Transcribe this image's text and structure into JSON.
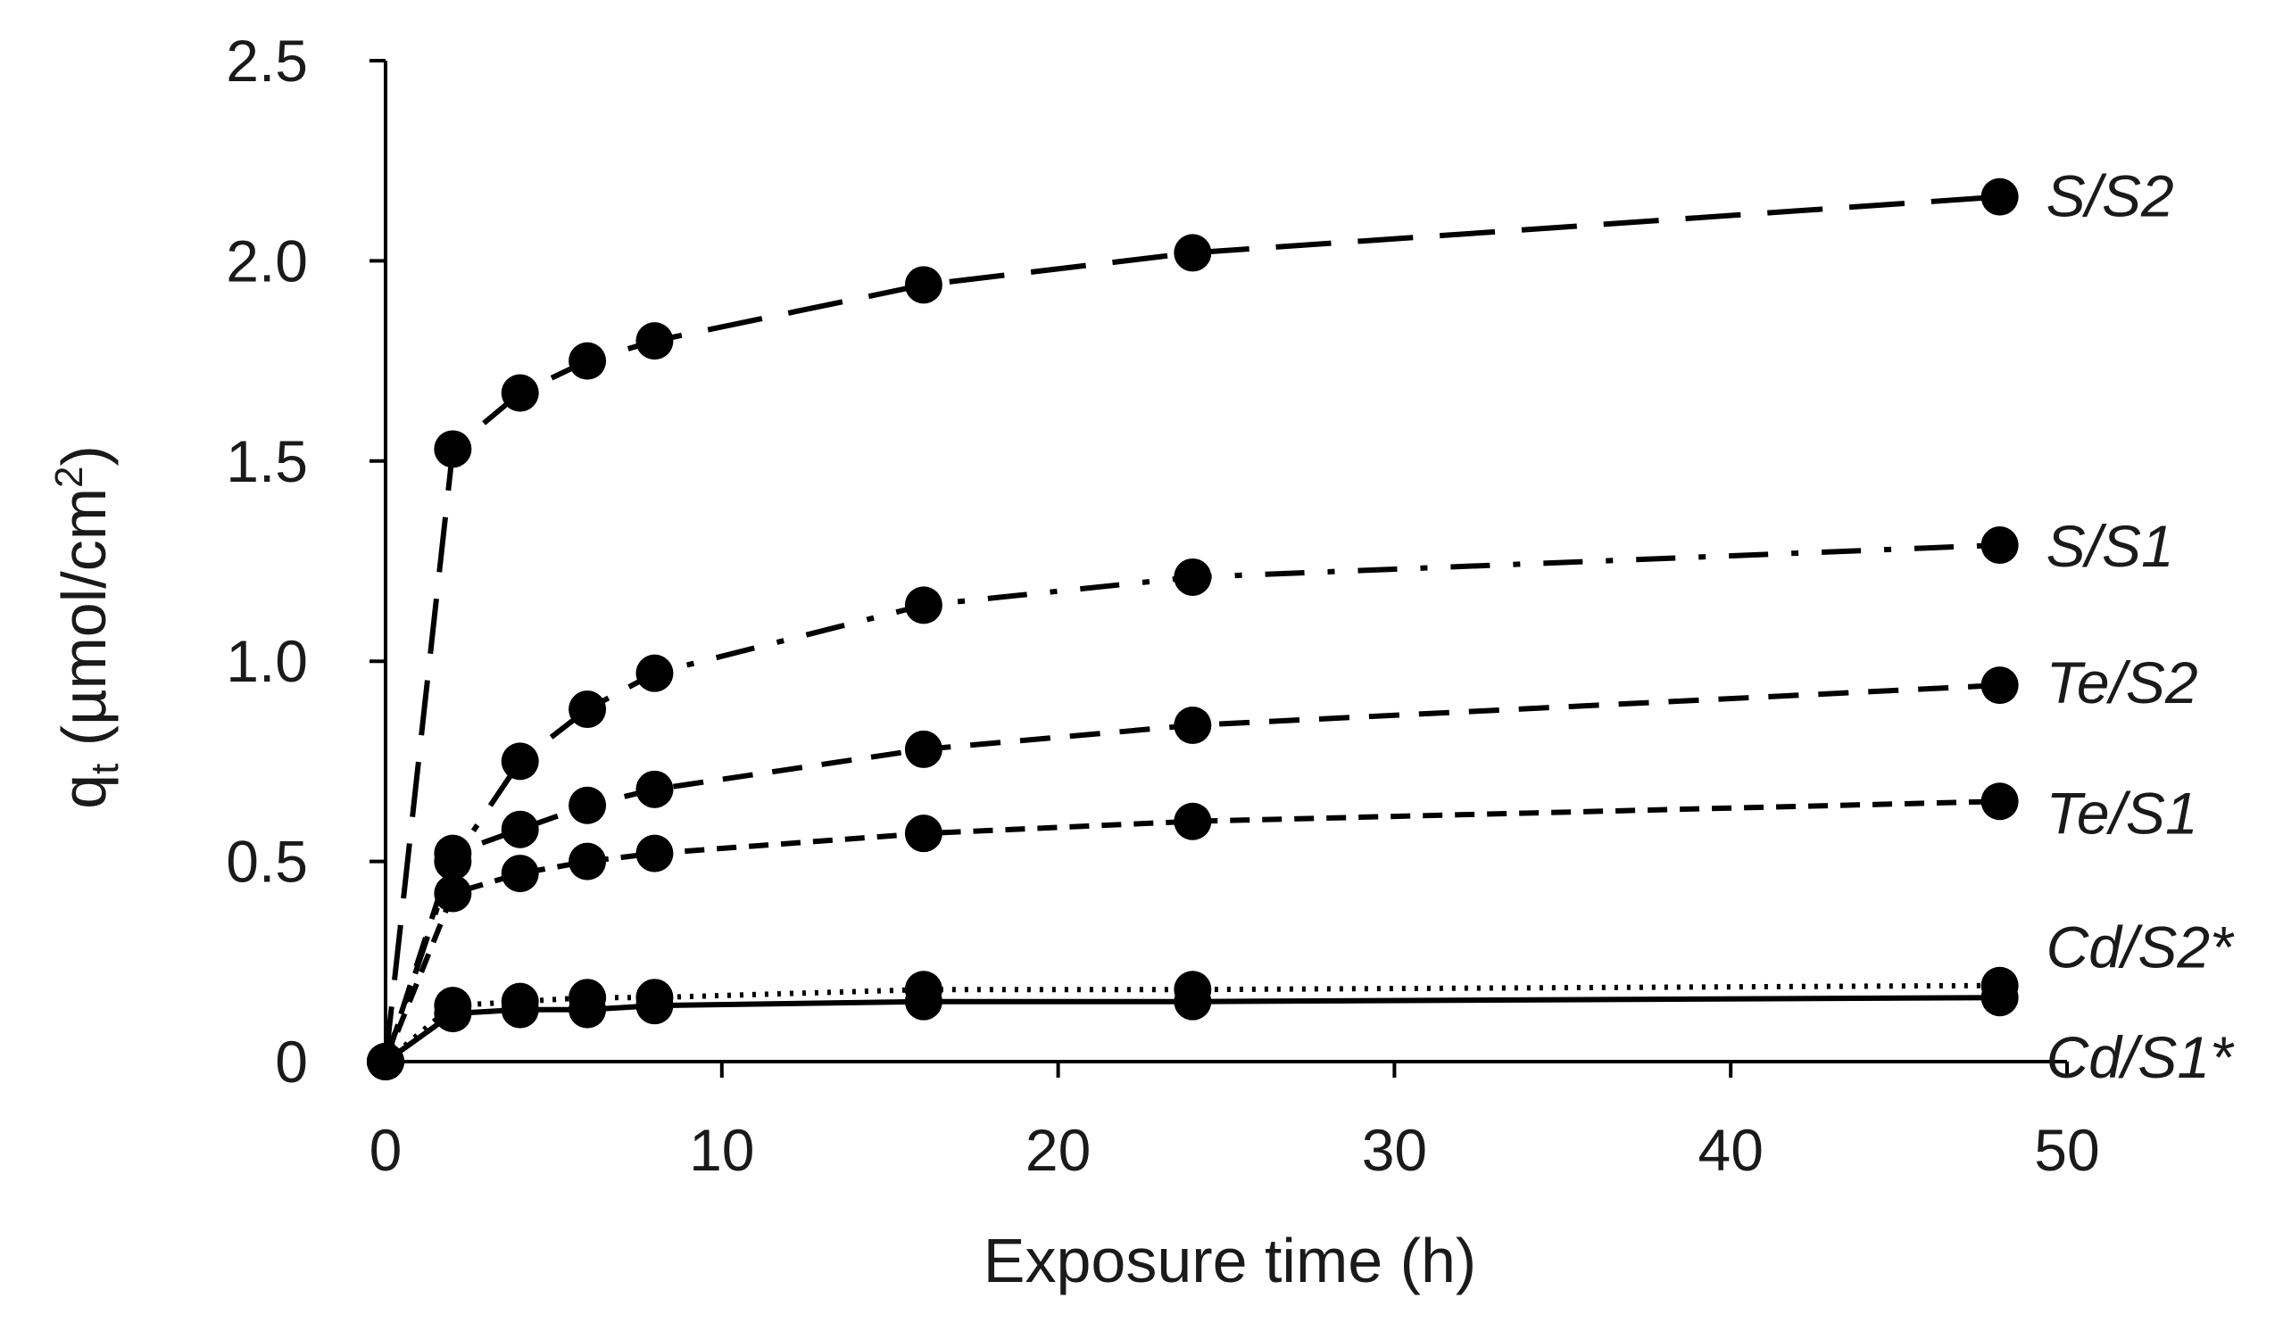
{
  "chart_data": {
    "type": "line",
    "xlabel": "Exposure time (h)",
    "ylabel_main": "q",
    "ylabel_sub": "t",
    "ylabel_unit": " (µmol/cm",
    "ylabel_sup": "2",
    "ylabel_close": ")",
    "xlim": [
      0,
      50
    ],
    "ylim": [
      0,
      2.5
    ],
    "xticks": [
      0,
      10,
      20,
      30,
      40,
      50
    ],
    "xtick_labels": [
      "0",
      "10",
      "20",
      "30",
      "40",
      "50"
    ],
    "yticks": [
      0,
      0.5,
      1.0,
      1.5,
      2.0,
      2.5
    ],
    "ytick_labels": [
      "0",
      "0.5",
      "1.0",
      "1.5",
      "2.0",
      "2.5"
    ],
    "grid": false,
    "legend": "none (series labeled at line ends on the right)",
    "line_color": "#000000",
    "series": [
      {
        "name": "S/S2",
        "dash": "long-dash",
        "x": [
          0,
          2,
          4,
          6,
          8,
          16,
          24,
          48
        ],
        "y": [
          0.0,
          1.53,
          1.67,
          1.75,
          1.8,
          1.94,
          2.02,
          2.16
        ]
      },
      {
        "name": "S/S1",
        "dash": "dash-dot",
        "x": [
          0,
          2,
          4,
          6,
          8,
          16,
          24,
          48
        ],
        "y": [
          0.0,
          0.5,
          0.75,
          0.88,
          0.97,
          1.14,
          1.21,
          1.29
        ]
      },
      {
        "name": "Te/S2",
        "dash": "medium-dash",
        "x": [
          0,
          2,
          4,
          6,
          8,
          16,
          24,
          48
        ],
        "y": [
          0.0,
          0.52,
          0.58,
          0.64,
          0.68,
          0.78,
          0.84,
          0.94
        ]
      },
      {
        "name": "Te/S1",
        "dash": "short-dash",
        "x": [
          0,
          2,
          4,
          6,
          8,
          16,
          24,
          48
        ],
        "y": [
          0.0,
          0.42,
          0.47,
          0.5,
          0.52,
          0.57,
          0.6,
          0.65
        ]
      },
      {
        "name": "Cd/S2*",
        "dash": "dotted",
        "x": [
          0,
          2,
          4,
          6,
          8,
          16,
          24,
          48
        ],
        "y": [
          0.0,
          0.14,
          0.15,
          0.16,
          0.16,
          0.18,
          0.18,
          0.19
        ]
      },
      {
        "name": "Cd/S1*",
        "dash": "solid",
        "x": [
          0,
          2,
          4,
          6,
          8,
          16,
          24,
          48
        ],
        "y": [
          0.0,
          0.12,
          0.13,
          0.13,
          0.14,
          0.15,
          0.15,
          0.16
        ]
      }
    ]
  }
}
